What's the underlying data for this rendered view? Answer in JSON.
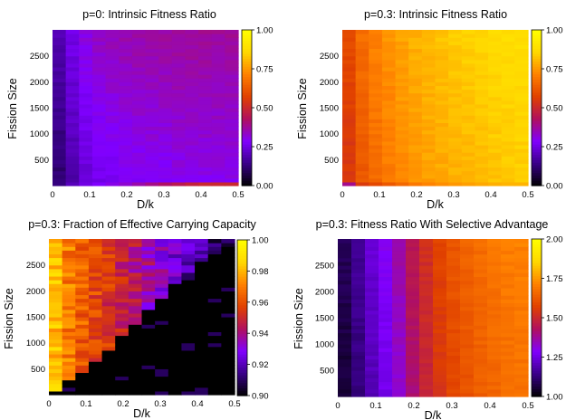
{
  "palette": {
    "name": "gnuplot-rgbformulae-7-5-15",
    "stops": [
      "#000000",
      "#380086",
      "#8000ff",
      "#b01060",
      "#e04000",
      "#ff8000",
      "#ffd700",
      "#ffff00"
    ]
  },
  "chart_data": [
    {
      "type": "heatmap",
      "title": "p=0: Intrinsic Fitness Ratio",
      "xlabel": "D/k",
      "ylabel": "Fission Size",
      "xlim": [
        0,
        0.5
      ],
      "ylim": [
        0,
        3000
      ],
      "xticks": [
        "0",
        "0.1",
        "0.2",
        "0.3",
        "0.4",
        "0.5"
      ],
      "yticks": [
        "500",
        "1000",
        "1500",
        "2000",
        "2500"
      ],
      "colorbar": {
        "min": 0,
        "max": 1,
        "ticks": [
          "0.00",
          "0.25",
          "0.50",
          "0.75",
          "1.00"
        ]
      },
      "grid": false,
      "x_columns": [
        0.0,
        0.05,
        0.1,
        0.15,
        0.2,
        0.25,
        0.3,
        0.35,
        0.4,
        0.45,
        0.5
      ],
      "column_values": [
        0.08,
        0.18,
        0.25,
        0.27,
        0.28,
        0.29,
        0.29,
        0.3,
        0.3,
        0.3,
        0.3
      ],
      "row_boost_top": 0.08,
      "bottom_row_values": [
        0.1,
        0.2,
        0.27,
        0.3,
        0.33,
        0.38,
        0.42,
        0.46,
        0.5,
        0.5,
        0.5
      ]
    },
    {
      "type": "heatmap",
      "title": "p=0.3: Intrinsic Fitness Ratio",
      "xlabel": "D/k",
      "ylabel": "Fission Size",
      "xlim": [
        0,
        0.5
      ],
      "ylim": [
        0,
        3000
      ],
      "xticks": [
        "0",
        "0.1",
        "0.2",
        "0.3",
        "0.4",
        "0.5"
      ],
      "yticks": [
        "500",
        "1000",
        "1500",
        "2000",
        "2500"
      ],
      "colorbar": {
        "min": 0,
        "max": 1,
        "ticks": [
          "0.00",
          "0.25",
          "0.50",
          "0.75",
          "1.00"
        ]
      },
      "grid": false,
      "x_columns": [
        0.0,
        0.05,
        0.1,
        0.15,
        0.2,
        0.25,
        0.3,
        0.35,
        0.4,
        0.45,
        0.5
      ],
      "column_values": [
        0.5,
        0.62,
        0.68,
        0.72,
        0.75,
        0.77,
        0.79,
        0.8,
        0.82,
        0.83,
        0.84
      ],
      "row_boost_top": 0.05,
      "bottom_row_values": [
        0.3,
        0.55,
        0.6,
        0.65,
        0.7,
        0.73,
        0.75,
        0.77,
        0.79,
        0.8,
        0.8
      ]
    },
    {
      "type": "heatmap",
      "title": "p=0.3: Fraction of Effective Carrying Capacity",
      "xlabel": "D/k",
      "ylabel": "Fission Size",
      "xlim": [
        0,
        0.5
      ],
      "ylim": [
        0,
        3000
      ],
      "xticks": [
        "0",
        "0.1",
        "0.2",
        "0.3",
        "0.4",
        "0.5"
      ],
      "yticks": [
        "500",
        "1000",
        "1500",
        "2000",
        "2500"
      ],
      "colorbar": {
        "min": 0.9,
        "max": 1,
        "ticks": [
          "0.90",
          "0.92",
          "0.94",
          "0.96",
          "0.98",
          "1.00"
        ]
      },
      "grid": false,
      "x_columns": [
        0.0,
        0.05,
        0.1,
        0.15,
        0.2,
        0.25,
        0.3,
        0.35,
        0.4,
        0.45,
        0.5
      ],
      "column_values": [
        0.988,
        0.97,
        0.962,
        0.955,
        0.948,
        0.94,
        0.932,
        0.925,
        0.918,
        0.912,
        0.905
      ],
      "threshold_fission": [
        0,
        250,
        500,
        800,
        1150,
        1500,
        1850,
        2200,
        2500,
        2750,
        2950
      ]
    },
    {
      "type": "heatmap",
      "title": "p=0.3: Fitness Ratio With Selective Advantage",
      "xlabel": "D/k",
      "ylabel": "Fission Size",
      "xlim": [
        0,
        0.5
      ],
      "ylim": [
        0,
        3000
      ],
      "xticks": [
        "0",
        "0.1",
        "0.2",
        "0.3",
        "0.4",
        "0.5"
      ],
      "yticks": [
        "500",
        "1000",
        "1500",
        "2000",
        "2500"
      ],
      "colorbar": {
        "min": 1,
        "max": 2,
        "ticks": [
          "1.00",
          "1.25",
          "1.50",
          "1.75",
          "2.00"
        ]
      },
      "grid": false,
      "x_columns": [
        0.0,
        0.05,
        0.1,
        0.15,
        0.2,
        0.25,
        0.3,
        0.35,
        0.4,
        0.45,
        0.5
      ],
      "column_values": [
        1.02,
        1.12,
        1.22,
        1.3,
        1.42,
        1.52,
        1.58,
        1.62,
        1.65,
        1.67,
        1.68
      ],
      "row_boost_top": 0.04
    }
  ]
}
